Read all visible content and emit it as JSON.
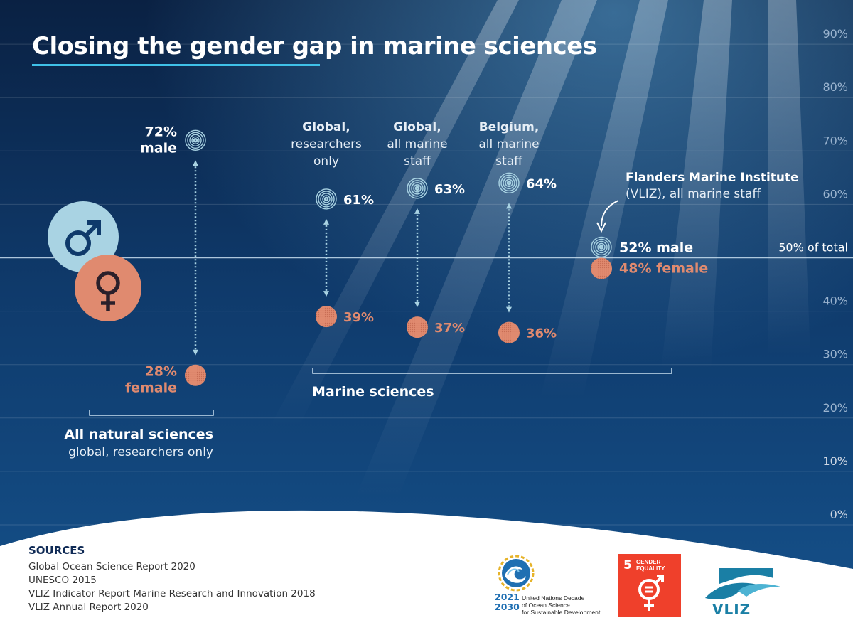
{
  "title": "Closing the gender gap in marine sciences",
  "colors": {
    "male": "#a9d3e3",
    "female": "#e08a6f",
    "background_top": "#0b2447",
    "background_mid": "#13487d",
    "accent": "#3fc1e8"
  },
  "chart_data": {
    "type": "dumbbell",
    "title": "Closing the gender gap in marine sciences",
    "y_axis": {
      "ticks": [
        "0%",
        "10%",
        "20%",
        "30%",
        "40%",
        "50% of total",
        "60%",
        "70%",
        "80%",
        "90%"
      ],
      "range": [
        0,
        90
      ],
      "unit": "%"
    },
    "reference_line": {
      "value": 50,
      "label": "50% of total"
    },
    "series_names": [
      "male",
      "female"
    ],
    "categories": [
      {
        "id": "all-natural",
        "header": [],
        "male": 72,
        "female": 28,
        "male_label": [
          "72%",
          "male"
        ],
        "female_label": [
          "28%",
          "female"
        ]
      },
      {
        "id": "global-researchers",
        "header": [
          "Global,",
          "researchers",
          "only"
        ],
        "male": 61,
        "female": 39,
        "male_label": [
          "61%"
        ],
        "female_label": [
          "39%"
        ]
      },
      {
        "id": "global-staff",
        "header": [
          "Global,",
          "all marine",
          "staff"
        ],
        "male": 63,
        "female": 37,
        "male_label": [
          "63%"
        ],
        "female_label": [
          "37%"
        ]
      },
      {
        "id": "belgium-staff",
        "header": [
          "Belgium,",
          "all marine",
          "staff"
        ],
        "male": 64,
        "female": 36,
        "male_label": [
          "64%"
        ],
        "female_label": [
          "36%"
        ]
      },
      {
        "id": "vliz",
        "header": [
          "Flanders Marine Institute",
          "(VLIZ), all marine staff"
        ],
        "male": 52,
        "female": 48,
        "male_label": [
          "52% male"
        ],
        "female_label": [
          "48% female"
        ]
      }
    ],
    "groups": [
      {
        "title": "All natural sciences",
        "subtitle": "global, researchers only"
      },
      {
        "title": "Marine sciences",
        "subtitle": ""
      }
    ]
  },
  "sources": {
    "title": "SOURCES",
    "items": [
      "Global Ocean Science Report 2020",
      "UNESCO 2015",
      "VLIZ Indicator Report Marine Research and Innovation 2018",
      "VLIZ Annual Report 2020"
    ]
  },
  "logos": {
    "un_decade_years": [
      "2021",
      "2030"
    ],
    "un_decade_text": [
      "United Nations Decade",
      "of Ocean Science",
      "for Sustainable Development"
    ],
    "sdg_number": "5",
    "sdg_text": [
      "GENDER",
      "EQUALITY"
    ],
    "vliz": "VLIZ"
  }
}
